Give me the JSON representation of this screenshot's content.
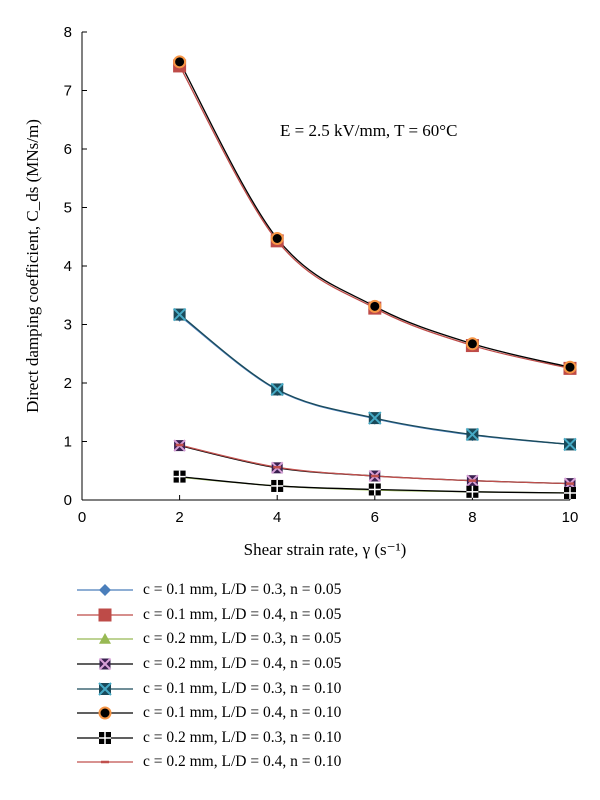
{
  "chart_data": {
    "type": "line",
    "title": "",
    "annotation": "E = 2.5 kV/mm, T = 60°C",
    "xlabel": "Shear strain rate, γ (s⁻¹)",
    "ylabel": "Direct damping coefficient, C_ds (MNs/m)",
    "xlim": [
      0,
      10
    ],
    "ylim": [
      0,
      8
    ],
    "xticks": [
      0,
      2,
      4,
      6,
      8,
      10
    ],
    "yticks": [
      0,
      1,
      2,
      3,
      4,
      5,
      6,
      7,
      8
    ],
    "grid": false,
    "legend_position": "bottom",
    "x": [
      2,
      4,
      6,
      8,
      10
    ],
    "series": [
      {
        "name": "c = 0.1 mm, L/D = 0.3, n = 0.05",
        "values": [
          3.15,
          1.88,
          1.39,
          1.11,
          0.95
        ],
        "color": "#4a7ebb",
        "marker": "diamond"
      },
      {
        "name": "c = 0.1 mm, L/D = 0.4, n = 0.05",
        "values": [
          7.42,
          4.43,
          3.28,
          2.64,
          2.25
        ],
        "color": "#be4b48",
        "marker": "square"
      },
      {
        "name": "c = 0.2 mm, L/D = 0.3, n = 0.05",
        "values": [
          0.39,
          0.24,
          0.17,
          0.14,
          0.12
        ],
        "color": "#98b954",
        "marker": "triangle"
      },
      {
        "name": "c = 0.2 mm, L/D = 0.4, n = 0.05",
        "values": [
          0.93,
          0.55,
          0.41,
          0.33,
          0.28
        ],
        "color": "#7d60a0",
        "marker": "x"
      },
      {
        "name": "c = 0.1 mm, L/D = 0.3, n = 0.10",
        "values": [
          3.17,
          1.89,
          1.4,
          1.12,
          0.95
        ],
        "color": "#46aac5",
        "marker": "asterisk"
      },
      {
        "name": "c = 0.1 mm, L/D = 0.4, n = 0.10",
        "values": [
          7.49,
          4.47,
          3.31,
          2.67,
          2.27
        ],
        "color": "#f79646",
        "marker": "circle"
      },
      {
        "name": "c = 0.2 mm, L/D = 0.3, n = 0.10",
        "values": [
          0.4,
          0.24,
          0.18,
          0.14,
          0.12
        ],
        "color": "#000000",
        "marker": "plus-square"
      },
      {
        "name": "c = 0.2 mm, L/D = 0.4, n = 0.10",
        "values": [
          0.94,
          0.56,
          0.41,
          0.33,
          0.28
        ],
        "color": "#c0504d",
        "marker": "dash"
      }
    ]
  }
}
